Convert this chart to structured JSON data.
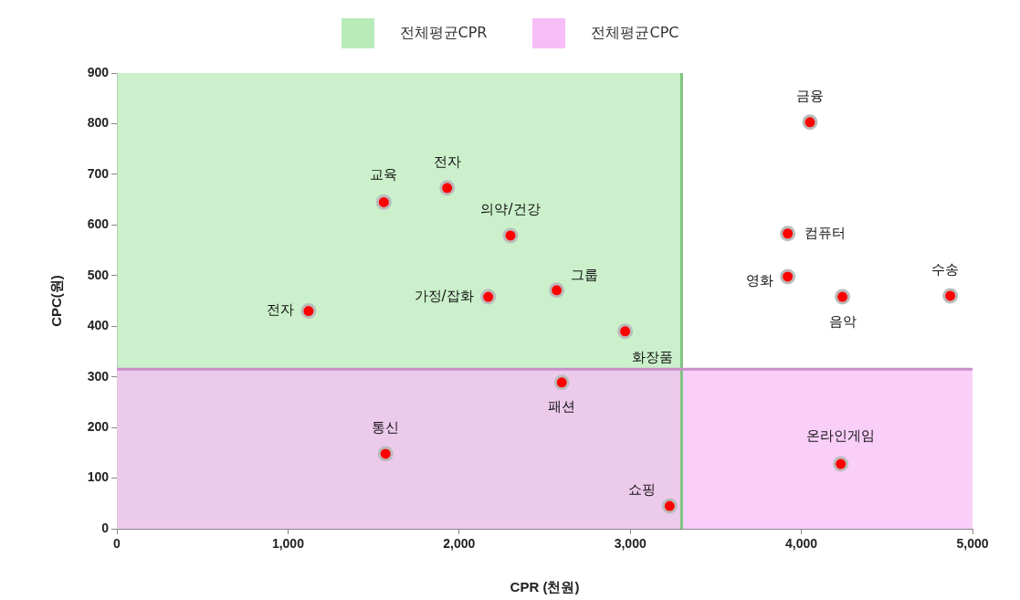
{
  "chart_data": {
    "type": "scatter",
    "xlabel": "CPR (천원)",
    "ylabel": "CPC(원)",
    "x": [
      1120,
      1560,
      1930,
      2300,
      2170,
      2570,
      2970,
      2600,
      1570,
      3230,
      4050,
      3920,
      3920,
      4240,
      4870,
      4230
    ],
    "series": [
      {
        "color": "#ff0000",
        "values": [
          430,
          645,
          673,
          579,
          458,
          471,
          390,
          289,
          148,
          45,
          803,
          583,
          498,
          458,
          460,
          128
        ]
      }
    ],
    "xlim": [
      0,
      5000
    ],
    "xticks": [
      0,
      {
        "value": 1000,
        "label": "1,000"
      },
      {
        "value": 2000,
        "label": "2,000"
      },
      {
        "value": 3000,
        "label": "3,000"
      },
      {
        "value": 4000,
        "label": "4,000"
      },
      {
        "value": 5000,
        "label": "5,000"
      }
    ],
    "ylim": [
      0,
      900
    ],
    "yticks": [
      0,
      100,
      200,
      300,
      400,
      500,
      600,
      700,
      800,
      900
    ],
    "bands": [
      {
        "axis": "x",
        "from": 0,
        "to": 3300,
        "label": "전체평균CPR",
        "color": "#b9ebb9"
      },
      {
        "axis": "y",
        "from": 0,
        "to": 315,
        "label": "전체평균CPC",
        "color": "#f7bdf7"
      }
    ],
    "ref_lines": [
      {
        "axis": "x",
        "value": 3300,
        "color": "#7fc47f"
      },
      {
        "axis": "y",
        "value": 315,
        "color": "#c88fc8"
      }
    ],
    "annotations": [
      {
        "text": "전자",
        "x": 1120,
        "y": 430
      },
      {
        "text": "교육",
        "x": 1560,
        "y": 645
      },
      {
        "text": "전자",
        "x": 1930,
        "y": 673
      },
      {
        "text": "의약/건강",
        "x": 2300,
        "y": 579
      },
      {
        "text": "가정/잡화",
        "x": 2170,
        "y": 458
      },
      {
        "text": "그룹",
        "x": 2570,
        "y": 471
      },
      {
        "text": "화장품",
        "x": 2970,
        "y": 390
      },
      {
        "text": "패션",
        "x": 2600,
        "y": 289
      },
      {
        "text": "통신",
        "x": 1570,
        "y": 148
      },
      {
        "text": "쇼핑",
        "x": 3230,
        "y": 45
      },
      {
        "text": "금융",
        "x": 4050,
        "y": 803
      },
      {
        "text": "컴퓨터",
        "x": 3920,
        "y": 583
      },
      {
        "text": "영화",
        "x": 3920,
        "y": 498
      },
      {
        "text": "음악",
        "x": 4240,
        "y": 458
      },
      {
        "text": "수송",
        "x": 4870,
        "y": 460
      },
      {
        "text": "온라인게임",
        "x": 4230,
        "y": 128
      }
    ],
    "legend": "top",
    "grid": false,
    "marker": "circle"
  }
}
